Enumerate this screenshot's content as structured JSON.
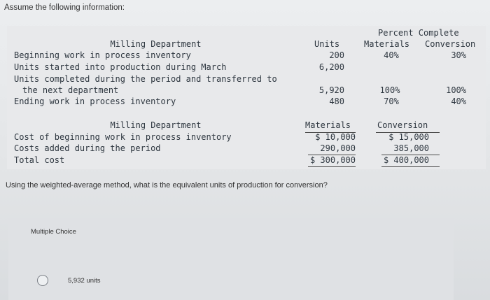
{
  "intro": "Assume the following information:",
  "table1": {
    "dept_header": "Milling Department",
    "units_header": "Units",
    "percent_header": "Percent Complete",
    "materials_header": "Materials",
    "conversion_header": "Conversion",
    "rows": [
      {
        "label": "Beginning work in process inventory",
        "units": "200",
        "materials": "40%",
        "conversion": "30%"
      },
      {
        "label": "Units started into production during March",
        "units": "6,200",
        "materials": "",
        "conversion": ""
      },
      {
        "label": "Units completed during the period and transferred to",
        "units": "",
        "materials": "",
        "conversion": ""
      },
      {
        "label": "the next department",
        "units": "5,920",
        "materials": "100%",
        "conversion": "100%"
      },
      {
        "label": "Ending work in process inventory",
        "units": "480",
        "materials": "70%",
        "conversion": "40%"
      }
    ]
  },
  "table2": {
    "dept_header": "Milling Department",
    "materials_header": "Materials",
    "conversion_header": "Conversion",
    "rows": [
      {
        "label": "Cost of beginning work in process inventory",
        "materials": "$ 10,000",
        "conversion": "$ 15,000"
      },
      {
        "label": "Costs added during the period",
        "materials": "290,000",
        "conversion": "385,000"
      },
      {
        "label": "Total cost",
        "materials": "$ 300,000",
        "conversion": "$ 400,000"
      }
    ]
  },
  "question": "Using the weighted-average method, what is the equivalent units of production for conversion?",
  "multiple_choice": {
    "label": "Multiple Choice",
    "options": [
      {
        "text": "5,932 units"
      }
    ]
  }
}
